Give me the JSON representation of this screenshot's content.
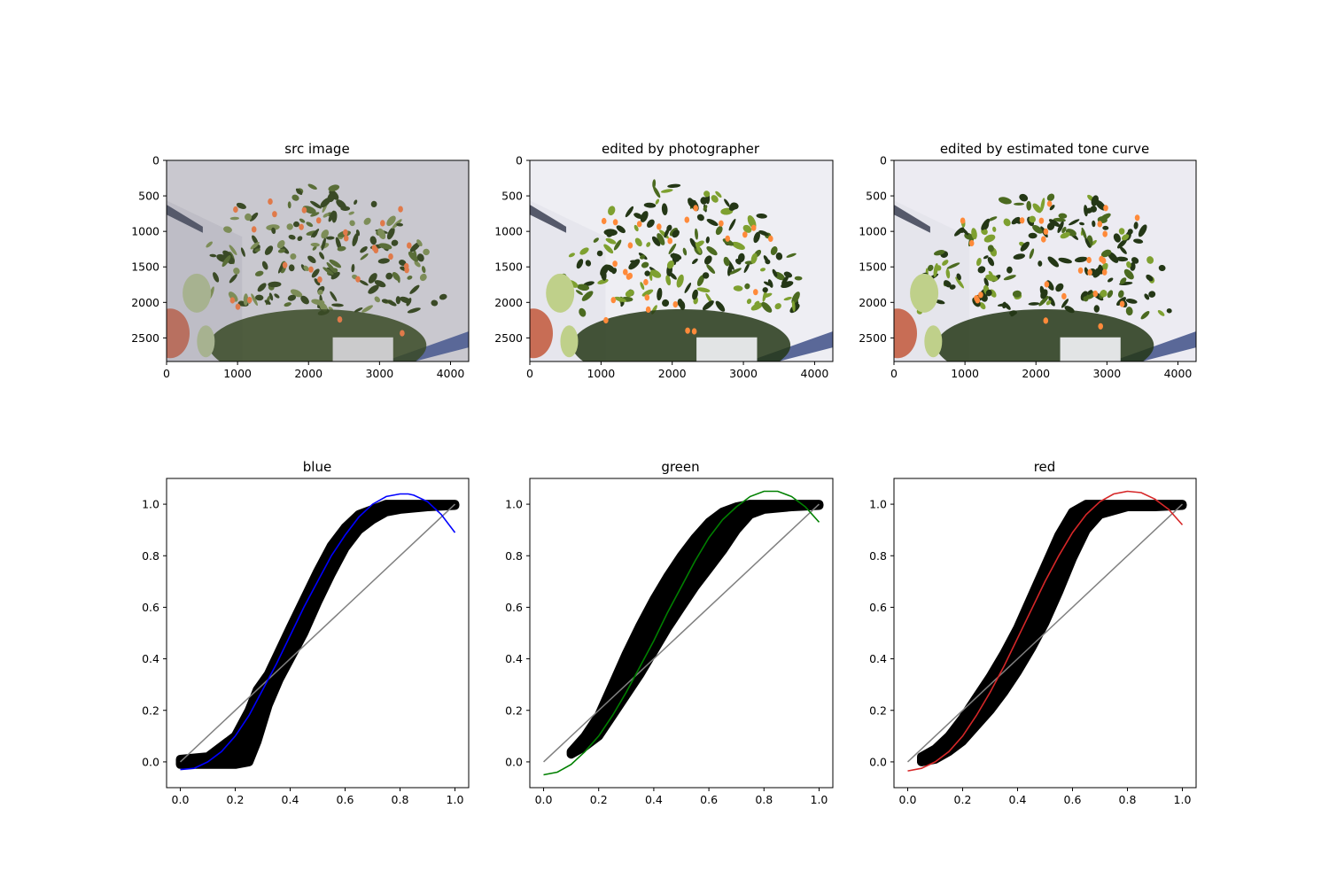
{
  "chart_data": [
    {
      "type": "image",
      "title": "src image",
      "tone": "src",
      "xticks": [
        "0",
        "1000",
        "2000",
        "3000",
        "4000"
      ],
      "yticks": [
        "0",
        "500",
        "1000",
        "1500",
        "2000",
        "2500"
      ],
      "xlim": [
        0,
        4256
      ],
      "ylim": [
        2832,
        0
      ]
    },
    {
      "type": "image",
      "title": "edited by photographer",
      "tone": "edited",
      "xticks": [
        "0",
        "1000",
        "2000",
        "3000",
        "4000"
      ],
      "yticks": [
        "0",
        "500",
        "1000",
        "1500",
        "2000",
        "2500"
      ],
      "xlim": [
        0,
        4256
      ],
      "ylim": [
        2832,
        0
      ]
    },
    {
      "type": "image",
      "title": "edited by estimated tone curve",
      "tone": "estimated",
      "xticks": [
        "0",
        "1000",
        "2000",
        "3000",
        "4000"
      ],
      "yticks": [
        "0",
        "500",
        "1000",
        "1500",
        "2000",
        "2500"
      ],
      "xlim": [
        0,
        4256
      ],
      "ylim": [
        2832,
        0
      ]
    },
    {
      "type": "scatter",
      "title": "blue",
      "color": "#0000ff",
      "identity_color": "#808080",
      "xlim": [
        -0.05,
        1.05
      ],
      "ylim": [
        -0.1,
        1.1
      ],
      "xticks": [
        "0.0",
        "0.2",
        "0.4",
        "0.6",
        "0.8",
        "1.0"
      ],
      "yticks": [
        "0.0",
        "0.2",
        "0.4",
        "0.6",
        "0.8",
        "1.0"
      ],
      "band": [
        [
          0.0,
          -0.01,
          0.01
        ],
        [
          0.1,
          -0.01,
          0.02
        ],
        [
          0.2,
          -0.01,
          0.1
        ],
        [
          0.25,
          0.0,
          0.2
        ],
        [
          0.28,
          0.08,
          0.28
        ],
        [
          0.32,
          0.22,
          0.34
        ],
        [
          0.36,
          0.32,
          0.43
        ],
        [
          0.4,
          0.4,
          0.52
        ],
        [
          0.45,
          0.5,
          0.63
        ],
        [
          0.5,
          0.62,
          0.74
        ],
        [
          0.55,
          0.73,
          0.84
        ],
        [
          0.6,
          0.83,
          0.91
        ],
        [
          0.65,
          0.9,
          0.96
        ],
        [
          0.7,
          0.94,
          0.98
        ],
        [
          0.75,
          0.97,
          1.0
        ],
        [
          0.8,
          0.98,
          1.0
        ],
        [
          0.9,
          0.99,
          1.0
        ],
        [
          1.0,
          0.995,
          1.0
        ]
      ],
      "fit": [
        [
          0.0,
          -0.03
        ],
        [
          0.05,
          -0.025
        ],
        [
          0.1,
          0.0
        ],
        [
          0.15,
          0.04
        ],
        [
          0.2,
          0.1
        ],
        [
          0.25,
          0.18
        ],
        [
          0.3,
          0.28
        ],
        [
          0.35,
          0.38
        ],
        [
          0.4,
          0.49
        ],
        [
          0.45,
          0.6
        ],
        [
          0.5,
          0.7
        ],
        [
          0.55,
          0.8
        ],
        [
          0.6,
          0.88
        ],
        [
          0.65,
          0.95
        ],
        [
          0.7,
          1.0
        ],
        [
          0.75,
          1.03
        ],
        [
          0.8,
          1.04
        ],
        [
          0.83,
          1.04
        ],
        [
          0.85,
          1.035
        ],
        [
          0.9,
          1.01
        ],
        [
          0.95,
          0.96
        ],
        [
          1.0,
          0.89
        ]
      ]
    },
    {
      "type": "scatter",
      "title": "green",
      "color": "#008000",
      "identity_color": "#808080",
      "xlim": [
        -0.05,
        1.05
      ],
      "ylim": [
        -0.1,
        1.1
      ],
      "xticks": [
        "0.0",
        "0.2",
        "0.4",
        "0.6",
        "0.8",
        "1.0"
      ],
      "yticks": [
        "0.0",
        "0.2",
        "0.4",
        "0.6",
        "0.8",
        "1.0"
      ],
      "band": [
        [
          0.1,
          0.03,
          0.04
        ],
        [
          0.15,
          0.06,
          0.1
        ],
        [
          0.2,
          0.1,
          0.18
        ],
        [
          0.25,
          0.18,
          0.3
        ],
        [
          0.3,
          0.26,
          0.42
        ],
        [
          0.35,
          0.34,
          0.53
        ],
        [
          0.4,
          0.43,
          0.63
        ],
        [
          0.45,
          0.52,
          0.72
        ],
        [
          0.5,
          0.6,
          0.8
        ],
        [
          0.55,
          0.68,
          0.87
        ],
        [
          0.6,
          0.75,
          0.93
        ],
        [
          0.65,
          0.82,
          0.97
        ],
        [
          0.7,
          0.9,
          0.99
        ],
        [
          0.75,
          0.96,
          1.0
        ],
        [
          0.8,
          0.98,
          1.0
        ],
        [
          0.9,
          0.99,
          1.0
        ],
        [
          1.0,
          0.995,
          1.0
        ]
      ],
      "fit": [
        [
          0.0,
          -0.05
        ],
        [
          0.05,
          -0.04
        ],
        [
          0.1,
          -0.01
        ],
        [
          0.15,
          0.04
        ],
        [
          0.2,
          0.1
        ],
        [
          0.25,
          0.18
        ],
        [
          0.3,
          0.27
        ],
        [
          0.35,
          0.37
        ],
        [
          0.4,
          0.47
        ],
        [
          0.45,
          0.58
        ],
        [
          0.5,
          0.68
        ],
        [
          0.55,
          0.78
        ],
        [
          0.6,
          0.87
        ],
        [
          0.65,
          0.94
        ],
        [
          0.7,
          0.99
        ],
        [
          0.75,
          1.03
        ],
        [
          0.8,
          1.05
        ],
        [
          0.85,
          1.05
        ],
        [
          0.9,
          1.03
        ],
        [
          0.95,
          0.99
        ],
        [
          1.0,
          0.93
        ]
      ]
    },
    {
      "type": "scatter",
      "title": "red",
      "color": "#d62728",
      "identity_color": "#808080",
      "xlim": [
        -0.05,
        1.05
      ],
      "ylim": [
        -0.1,
        1.1
      ],
      "xticks": [
        "0.0",
        "0.2",
        "0.4",
        "0.6",
        "0.8",
        "1.0"
      ],
      "yticks": [
        "0.0",
        "0.2",
        "0.4",
        "0.6",
        "0.8",
        "1.0"
      ],
      "band": [
        [
          0.05,
          0.0,
          0.02
        ],
        [
          0.1,
          0.01,
          0.05
        ],
        [
          0.15,
          0.04,
          0.1
        ],
        [
          0.2,
          0.08,
          0.17
        ],
        [
          0.25,
          0.14,
          0.25
        ],
        [
          0.3,
          0.2,
          0.33
        ],
        [
          0.35,
          0.27,
          0.42
        ],
        [
          0.4,
          0.35,
          0.52
        ],
        [
          0.45,
          0.44,
          0.64
        ],
        [
          0.5,
          0.54,
          0.76
        ],
        [
          0.55,
          0.66,
          0.88
        ],
        [
          0.6,
          0.79,
          0.97
        ],
        [
          0.65,
          0.9,
          1.0
        ],
        [
          0.7,
          0.96,
          1.0
        ],
        [
          0.8,
          0.99,
          1.0
        ],
        [
          0.9,
          0.99,
          1.0
        ],
        [
          1.0,
          0.995,
          1.0
        ]
      ],
      "fit": [
        [
          0.0,
          -0.035
        ],
        [
          0.05,
          -0.025
        ],
        [
          0.1,
          0.0
        ],
        [
          0.15,
          0.04
        ],
        [
          0.2,
          0.1
        ],
        [
          0.25,
          0.18
        ],
        [
          0.3,
          0.27
        ],
        [
          0.35,
          0.37
        ],
        [
          0.4,
          0.48
        ],
        [
          0.45,
          0.59
        ],
        [
          0.5,
          0.7
        ],
        [
          0.55,
          0.8
        ],
        [
          0.6,
          0.89
        ],
        [
          0.65,
          0.96
        ],
        [
          0.7,
          1.01
        ],
        [
          0.75,
          1.04
        ],
        [
          0.8,
          1.05
        ],
        [
          0.85,
          1.045
        ],
        [
          0.9,
          1.02
        ],
        [
          0.95,
          0.98
        ],
        [
          1.0,
          0.92
        ]
      ]
    }
  ]
}
